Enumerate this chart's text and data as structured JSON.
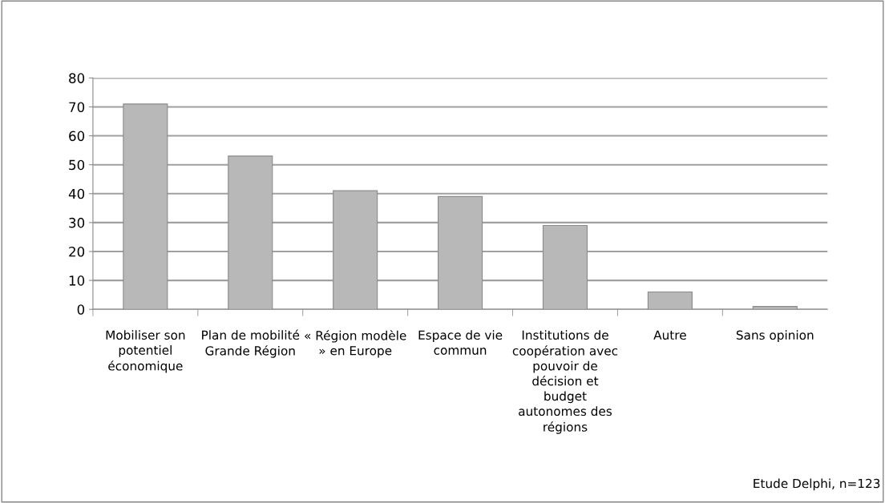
{
  "chart_data": {
    "type": "bar",
    "categories": [
      "Mobiliser son potentiel économique",
      "Plan de mobilité Grande Région",
      "« Région modèle » en Europe",
      "Espace de vie commun",
      "Institutions de coopération avec pouvoir de décision et budget autonomes des régions",
      "Autre",
      "Sans opinion"
    ],
    "values": [
      71,
      53,
      41,
      39,
      29,
      6,
      1
    ],
    "color": "#b8b8b8",
    "ylim": [
      0,
      80
    ],
    "yticks": [
      0,
      10,
      20,
      30,
      40,
      50,
      60,
      70,
      80
    ],
    "grid": "y",
    "annotations": [
      "Etude Delphi, n=123"
    ]
  }
}
